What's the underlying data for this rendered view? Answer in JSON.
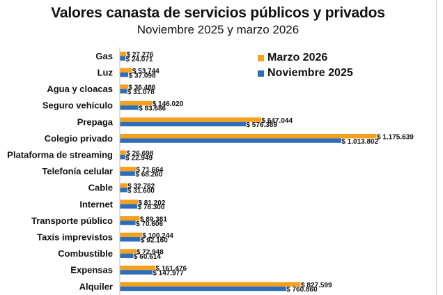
{
  "chart_data": {
    "type": "bar",
    "orientation": "horizontal",
    "title": "Valores canasta de servicios públicos y privados",
    "subtitle": "Noviembre 2025 y marzo 2026",
    "xlabel": "",
    "ylabel": "",
    "grid": false,
    "legend_position": "top-right",
    "categories": [
      "Gas",
      "Luz",
      "Agua y cloacas",
      "Seguro vehículo",
      "Prepaga",
      "Colegio privado",
      "Plataforma de streaming",
      "Telefonía celular",
      "Cable",
      "Internet",
      "Transporte público",
      "Taxis imprevistos",
      "Combustible",
      "Expensas",
      "Alquiler"
    ],
    "series": [
      {
        "name": "Marzo 2026",
        "color": "#F5A01E",
        "values": [
          27276,
          53744,
          36486,
          146020,
          647044,
          1175639,
          26698,
          71664,
          32762,
          81202,
          89381,
          100244,
          72948,
          161476,
          827599
        ],
        "labels": [
          "$ 27.276",
          "$ 53.744",
          "$ 36.486",
          "$ 146.020",
          "$ 647.044",
          "$ 1.175.639",
          "$ 26.698",
          "$ 71.664",
          "$ 32.762",
          "$ 81.202",
          "$ 89.381",
          "$ 100.244",
          "$ 72.948",
          "$ 161.476",
          "$ 827.599"
        ]
      },
      {
        "name": "Noviembre 2025",
        "color": "#2E6DB8",
        "values": [
          24071,
          37098,
          31078,
          83686,
          576389,
          1013802,
          22949,
          68260,
          31600,
          78300,
          70606,
          92160,
          60614,
          147977,
          760860
        ],
        "labels": [
          "$ 24.071",
          "$ 37.098",
          "$ 31.078",
          "$ 83.686",
          "$ 576.389",
          "$ 1.013.802",
          "$ 22.949",
          "$ 68.260",
          "$ 31.600",
          "$ 78.300",
          "$ 70.606",
          "$ 92.160",
          "$ 60.614",
          "$ 147.977",
          "$ 760.860"
        ]
      }
    ],
    "xlim": [
      0,
      1175639
    ]
  }
}
